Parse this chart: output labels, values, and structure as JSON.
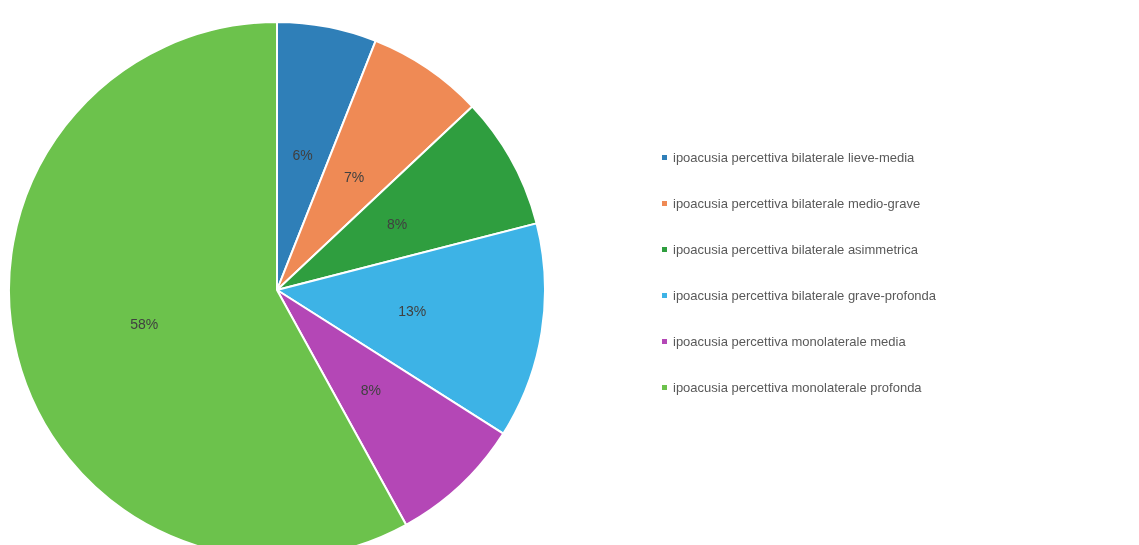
{
  "chart_data": {
    "type": "pie",
    "categories": [
      "ipoacusia percettiva bilaterale lieve-media",
      "ipoacusia percettiva bilaterale medio-grave",
      "ipoacusia percettiva bilaterale asimmetrica",
      "ipoacusia percettiva bilaterale grave-profonda",
      "ipoacusia percettiva monolaterale media",
      "ipoacusia percettiva monolaterale profonda"
    ],
    "values": [
      6,
      7,
      8,
      13,
      8,
      58
    ],
    "value_labels": [
      "6%",
      "7%",
      "8%",
      "13%",
      "8%",
      "58%"
    ],
    "colors": [
      "#2f7fb8",
      "#ef8a55",
      "#2f9e3f",
      "#3db3e6",
      "#b447b6",
      "#6cc24c"
    ],
    "legend": "right"
  }
}
